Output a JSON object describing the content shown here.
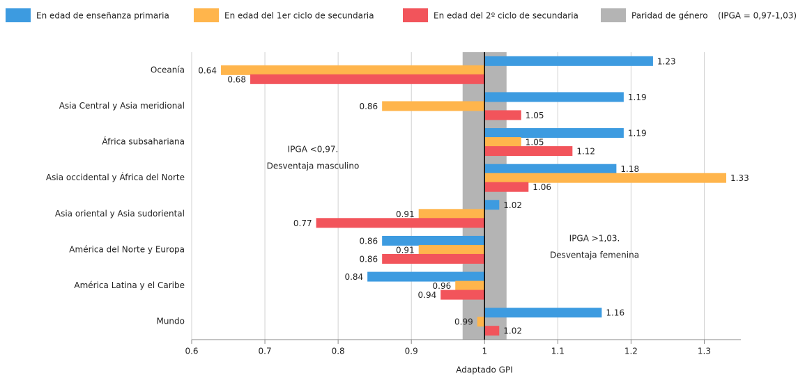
{
  "chart_data": {
    "type": "bar",
    "orientation": "horizontal",
    "categories": [
      "Oceanía",
      "Asia Central y Asia meridional",
      "África subsahariana",
      "Asia occidental y África del Norte",
      "Asia oriental y Asia sudoriental",
      "América del Norte y Europa",
      "América Latina y el Caribe",
      "Mundo"
    ],
    "series": [
      {
        "name": "En edad de enseñanza primaria",
        "color": "#3d9be0",
        "values": [
          1.23,
          1.19,
          1.19,
          1.18,
          1.02,
          0.86,
          0.84,
          1.16
        ]
      },
      {
        "name": "En edad del 1er ciclo de secundaria",
        "color": "#ffb54c",
        "values": [
          0.64,
          0.86,
          1.05,
          1.33,
          0.91,
          0.91,
          0.96,
          0.99
        ]
      },
      {
        "name": "En edad del 2º ciclo de secundaria",
        "color": "#f2545b",
        "values": [
          0.68,
          1.05,
          1.12,
          1.06,
          0.77,
          0.86,
          0.94,
          1.02
        ]
      }
    ],
    "baseline": 1,
    "parity_band": {
      "name": "Paridad de género",
      "note": "(IPGA = 0,97-1,03)",
      "range": [
        0.97,
        1.03
      ],
      "color": "#b4b4b4"
    },
    "annotations": [
      [
        "IPGA <0,97.",
        "Desventaja masculino"
      ],
      [
        "IPGA >1,03.",
        "Desventaja femenina"
      ]
    ],
    "xlabel": "Adaptado GPI",
    "xlim": [
      0.6,
      1.35
    ],
    "xticks": [
      0.6,
      0.7,
      0.8,
      0.9,
      1,
      1.1,
      1.2,
      1.3
    ],
    "grid": true,
    "legend": "top"
  }
}
